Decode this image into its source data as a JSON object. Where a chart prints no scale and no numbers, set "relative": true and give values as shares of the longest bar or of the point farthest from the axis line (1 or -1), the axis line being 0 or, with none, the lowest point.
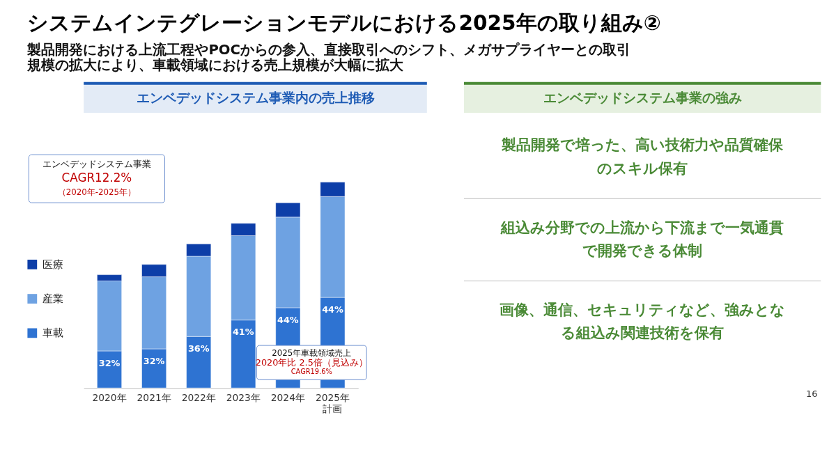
{
  "chart_data": [
    {
      "type": "bar",
      "title": "システムインテグレーションモデルにおける2025年の取り組み②",
      "subtitle": "製品開発における上流工程やPOCからの参入、直接取引へのシフト、メガサプライヤーとの取引規模の拡大により、車載領域における売上規模が大幅に拡大",
      "categories": [
        "2020年",
        "2021年",
        "2022年",
        "2023年",
        "2024年",
        "2025年計画"
      ],
      "stacked": true,
      "relative": true,
      "legend": "left",
      "series": [
        {
          "name": "車載",
          "color": "#2e73d2",
          "values": [
            0.18,
            0.19,
            0.25,
            0.33,
            0.39,
            0.44
          ]
        },
        {
          "name": "産業",
          "color": "#6ea2e2",
          "values": [
            0.34,
            0.35,
            0.39,
            0.41,
            0.44,
            0.49
          ]
        },
        {
          "name": "医療",
          "color": "#0d3ea8",
          "values": [
            0.03,
            0.06,
            0.06,
            0.06,
            0.07,
            0.07
          ]
        }
      ],
      "annotations": [
        "エンベデッドシステム事業内の売上推移",
        "エンベデッドシステム事業",
        "CAGR12.2%",
        "（2020年-2025年）",
        "2025年車載領域売上",
        "2020年比 2.5倍（見込み）",
        "CAGR19.6%",
        "32%",
        "32%",
        "36%",
        "41%",
        "44%",
        "44%"
      ]
    },
    {
      "type": "other",
      "title": "エンベデッドシステム事業の強み",
      "annotations": [
        "製品開発で培った、高い技術力や品質確保のスキル保有",
        "組込み分野での上流から下流まで一気通貫で開発できる体制",
        "画像、通信、セキュリティなど、強みとなる組込み関連技術を保有",
        "16"
      ]
    }
  ]
}
